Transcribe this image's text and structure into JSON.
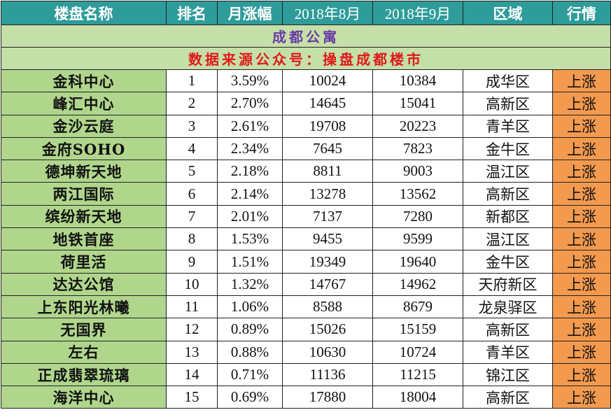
{
  "header": {
    "name": "楼盘名称",
    "rank": "排名",
    "monthly_change": "月涨幅",
    "aug": "2018年8月",
    "sep": "2018年9月",
    "district": "区域",
    "trend": "行情"
  },
  "title": "成都公寓",
  "source": "数据来源公众号：操盘成都楼市",
  "colors": {
    "header_bg": "#2e9c9a",
    "name_bg": "#b0d68c",
    "banner_bg": "#c5dfa8",
    "trend_bg": "#f39a4e",
    "title_text": "#6a3aa6",
    "source_text": "#e11818"
  },
  "rows": [
    {
      "name": "金科中心",
      "rank": "1",
      "change": "3.59%",
      "aug": "10024",
      "sep": "10384",
      "district": "成华区",
      "trend": "上涨"
    },
    {
      "name": "峰汇中心",
      "rank": "2",
      "change": "2.70%",
      "aug": "14645",
      "sep": "15041",
      "district": "高新区",
      "trend": "上涨"
    },
    {
      "name": "金沙云庭",
      "rank": "3",
      "change": "2.61%",
      "aug": "19708",
      "sep": "20223",
      "district": "青羊区",
      "trend": "上涨"
    },
    {
      "name": "金府SOHO",
      "rank": "4",
      "change": "2.34%",
      "aug": "7645",
      "sep": "7823",
      "district": "金牛区",
      "trend": "上涨"
    },
    {
      "name": "德坤新天地",
      "rank": "5",
      "change": "2.18%",
      "aug": "8811",
      "sep": "9003",
      "district": "温江区",
      "trend": "上涨"
    },
    {
      "name": "两江国际",
      "rank": "6",
      "change": "2.14%",
      "aug": "13278",
      "sep": "13562",
      "district": "高新区",
      "trend": "上涨"
    },
    {
      "name": "缤纷新天地",
      "rank": "7",
      "change": "2.01%",
      "aug": "7137",
      "sep": "7280",
      "district": "新都区",
      "trend": "上涨"
    },
    {
      "name": "地铁首座",
      "rank": "8",
      "change": "1.53%",
      "aug": "9455",
      "sep": "9599",
      "district": "温江区",
      "trend": "上涨"
    },
    {
      "name": "荷里活",
      "rank": "9",
      "change": "1.51%",
      "aug": "19349",
      "sep": "19640",
      "district": "金牛区",
      "trend": "上涨"
    },
    {
      "name": "达达公馆",
      "rank": "10",
      "change": "1.32%",
      "aug": "14767",
      "sep": "14962",
      "district": "天府新区",
      "trend": "上涨"
    },
    {
      "name": "上东阳光林曦",
      "rank": "11",
      "change": "1.06%",
      "aug": "8588",
      "sep": "8679",
      "district": "龙泉驿区",
      "trend": "上涨"
    },
    {
      "name": "无国界",
      "rank": "12",
      "change": "0.89%",
      "aug": "15026",
      "sep": "15159",
      "district": "高新区",
      "trend": "上涨"
    },
    {
      "name": "左右",
      "rank": "13",
      "change": "0.88%",
      "aug": "10630",
      "sep": "10724",
      "district": "青羊区",
      "trend": "上涨"
    },
    {
      "name": "正成翡翠琉璃",
      "rank": "14",
      "change": "0.71%",
      "aug": "11136",
      "sep": "11215",
      "district": "锦江区",
      "trend": "上涨"
    },
    {
      "name": "海洋中心",
      "rank": "15",
      "change": "0.69%",
      "aug": "17880",
      "sep": "18004",
      "district": "高新区",
      "trend": "上涨"
    }
  ]
}
